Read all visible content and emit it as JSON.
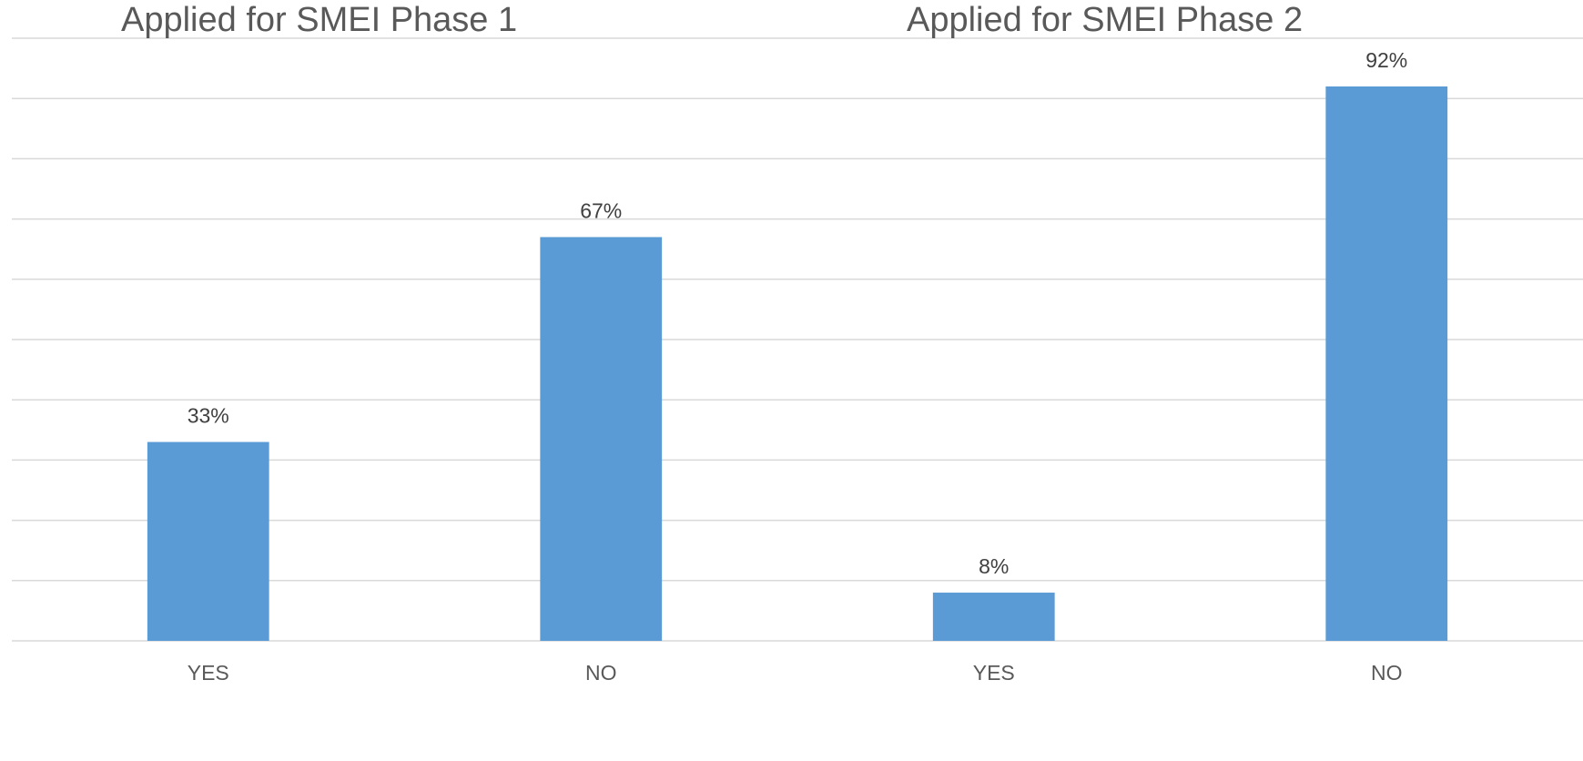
{
  "chart_data": [
    {
      "type": "bar",
      "title": "Applied for SMEI Phase 1",
      "categories": [
        "YES",
        "NO"
      ],
      "values": [
        33,
        67
      ],
      "value_labels": [
        "33%",
        "67%"
      ],
      "color": "#5b9bd5",
      "ylim": [
        0,
        100
      ],
      "yticks": [
        0,
        10,
        20,
        30,
        40,
        50,
        60,
        70,
        80,
        90,
        100
      ],
      "grid": true
    },
    {
      "type": "bar",
      "title": "Applied for SMEI Phase 2",
      "categories": [
        "YES",
        "NO"
      ],
      "values": [
        8,
        92
      ],
      "value_labels": [
        "8%",
        "92%"
      ],
      "color": "#5b9bd5",
      "ylim": [
        0,
        100
      ],
      "yticks": [
        0,
        10,
        20,
        30,
        40,
        50,
        60,
        70,
        80,
        90,
        100
      ],
      "grid": true
    }
  ]
}
